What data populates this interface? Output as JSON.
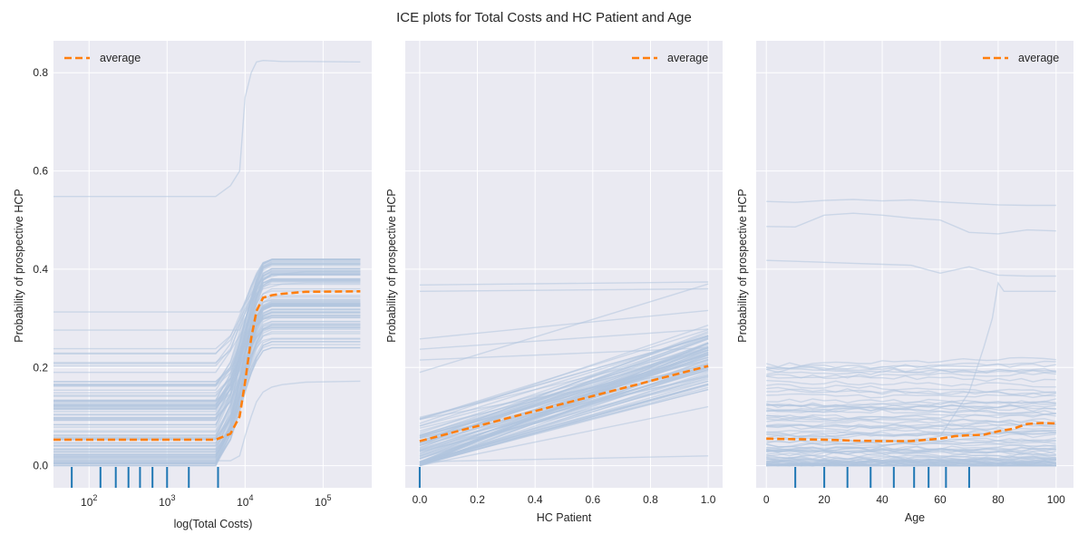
{
  "figure": {
    "title": "ICE plots for Total Costs and HC Patient and Age"
  },
  "colors": {
    "plot_bg": "#eaeaf2",
    "grid": "#ffffff",
    "ice_line": "#b0c4de",
    "average": "#ff7f0e",
    "rug": "#1f77b4",
    "text": "#262626"
  },
  "chart_data": [
    {
      "type": "line",
      "title": "",
      "xlabel": "log(Total Costs)",
      "ylabel": "Probability of prospective HCP",
      "x_scale": "log",
      "xlim": [
        35,
        420000
      ],
      "ylim": [
        -0.045,
        0.865
      ],
      "y_ticks": [
        "0.0",
        "0.2",
        "0.4",
        "0.6",
        "0.8"
      ],
      "y_tick_values": [
        0,
        0.2,
        0.4,
        0.6,
        0.8
      ],
      "x_tick_labels": [
        {
          "base": "10",
          "exp": "2",
          "value": 100
        },
        {
          "base": "10",
          "exp": "3",
          "value": 1000
        },
        {
          "base": "10",
          "exp": "4",
          "value": 10000
        },
        {
          "base": "10",
          "exp": "5",
          "value": 100000
        }
      ],
      "legend": {
        "entries": [
          "average"
        ],
        "placement": "top-left"
      },
      "ice_lines": {
        "count": 90,
        "x": [
          35,
          1000,
          4200,
          6500,
          8500,
          10000,
          12000,
          14000,
          17000,
          22000,
          30000,
          60000,
          300000
        ],
        "highlight_curves": [
          [
            0.548,
            0.548,
            0.548,
            0.57,
            0.6,
            0.75,
            0.8,
            0.822,
            0.825,
            0.824,
            0.823,
            0.823,
            0.822
          ],
          [
            0.313,
            0.313,
            0.313,
            0.313,
            0.313,
            0.33,
            0.35,
            0.37,
            0.38,
            0.385,
            0.39,
            0.395,
            0.395
          ],
          [
            0.276,
            0.276,
            0.276,
            0.276,
            0.276,
            0.3,
            0.33,
            0.35,
            0.36,
            0.365,
            0.37,
            0.372,
            0.372
          ],
          [
            0.01,
            0.01,
            0.01,
            0.01,
            0.02,
            0.06,
            0.1,
            0.13,
            0.15,
            0.16,
            0.165,
            0.17,
            0.172
          ]
        ]
      },
      "average": {
        "name": "average",
        "x": [
          35,
          1000,
          4200,
          6500,
          8500,
          10000,
          12000,
          14000,
          17000,
          22000,
          30000,
          60000,
          300000
        ],
        "values": [
          0.053,
          0.053,
          0.053,
          0.065,
          0.1,
          0.17,
          0.26,
          0.315,
          0.342,
          0.347,
          0.35,
          0.354,
          0.355
        ]
      },
      "rug": [
        60,
        140,
        220,
        320,
        450,
        650,
        1000,
        1900,
        4500
      ]
    },
    {
      "type": "line",
      "title": "",
      "xlabel": "HC Patient",
      "ylabel": "Probability of prospective HCP",
      "x_scale": "linear",
      "xlim": [
        -0.05,
        1.05
      ],
      "ylim": [
        -0.045,
        0.865
      ],
      "y_ticks": [],
      "x_ticks": [
        "0.0",
        "0.2",
        "0.4",
        "0.6",
        "0.8",
        "1.0"
      ],
      "x_tick_values": [
        0,
        0.2,
        0.4,
        0.6,
        0.8,
        1.0
      ],
      "legend": {
        "entries": [
          "average"
        ],
        "placement": "top-right"
      },
      "ice_lines": {
        "count": 80,
        "highlight_pairs": [
          [
            0.368,
            0.374
          ],
          [
            0.355,
            0.36
          ],
          [
            0.258,
            0.316
          ],
          [
            0.237,
            0.278
          ],
          [
            0.19,
            0.37
          ],
          [
            0.008,
            0.02
          ],
          [
            0.0,
            0.12
          ],
          [
            0.215,
            0.24
          ]
        ]
      },
      "average": {
        "name": "average",
        "x": [
          0,
          1
        ],
        "values": [
          0.05,
          0.203
        ]
      },
      "rug": [
        0.0
      ]
    },
    {
      "type": "line",
      "title": "",
      "xlabel": "Age",
      "ylabel": "Probability of prospective HCP",
      "x_scale": "linear",
      "xlim": [
        -3.5,
        106
      ],
      "ylim": [
        -0.045,
        0.865
      ],
      "y_ticks": [],
      "x_ticks": [
        "0",
        "20",
        "40",
        "60",
        "80",
        "100"
      ],
      "x_tick_values": [
        0,
        20,
        40,
        60,
        80,
        100
      ],
      "legend": {
        "entries": [
          "average"
        ],
        "placement": "top-right"
      },
      "ice_lines": {
        "count": 80,
        "highlight_curves": [
          {
            "x": [
              0,
              10,
              20,
              30,
              40,
              50,
              60,
              70,
              80,
              90,
              100
            ],
            "y": [
              0.538,
              0.536,
              0.54,
              0.542,
              0.539,
              0.541,
              0.537,
              0.534,
              0.531,
              0.53,
              0.53
            ]
          },
          {
            "x": [
              0,
              10,
              20,
              30,
              40,
              50,
              60,
              70,
              80,
              90,
              100
            ],
            "y": [
              0.487,
              0.486,
              0.51,
              0.514,
              0.51,
              0.504,
              0.5,
              0.475,
              0.472,
              0.48,
              0.478
            ]
          },
          {
            "x": [
              0,
              10,
              20,
              30,
              40,
              50,
              60,
              70,
              80,
              90,
              100
            ],
            "y": [
              0.418,
              0.416,
              0.414,
              0.412,
              0.41,
              0.408,
              0.392,
              0.405,
              0.388,
              0.386,
              0.386
            ]
          },
          {
            "x": [
              0,
              20,
              40,
              60,
              70,
              75,
              78,
              80,
              82,
              90,
              100
            ],
            "y": [
              0.03,
              0.03,
              0.04,
              0.06,
              0.15,
              0.24,
              0.3,
              0.372,
              0.355,
              0.355,
              0.355
            ]
          }
        ]
      },
      "average": {
        "name": "average",
        "x": [
          0,
          10,
          20,
          30,
          40,
          50,
          60,
          65,
          70,
          75,
          80,
          85,
          90,
          95,
          100
        ],
        "values": [
          0.055,
          0.054,
          0.053,
          0.051,
          0.05,
          0.05,
          0.055,
          0.06,
          0.062,
          0.063,
          0.07,
          0.075,
          0.085,
          0.087,
          0.086
        ]
      },
      "rug": [
        10,
        20,
        28,
        36,
        44,
        51,
        56,
        62,
        70
      ]
    }
  ]
}
